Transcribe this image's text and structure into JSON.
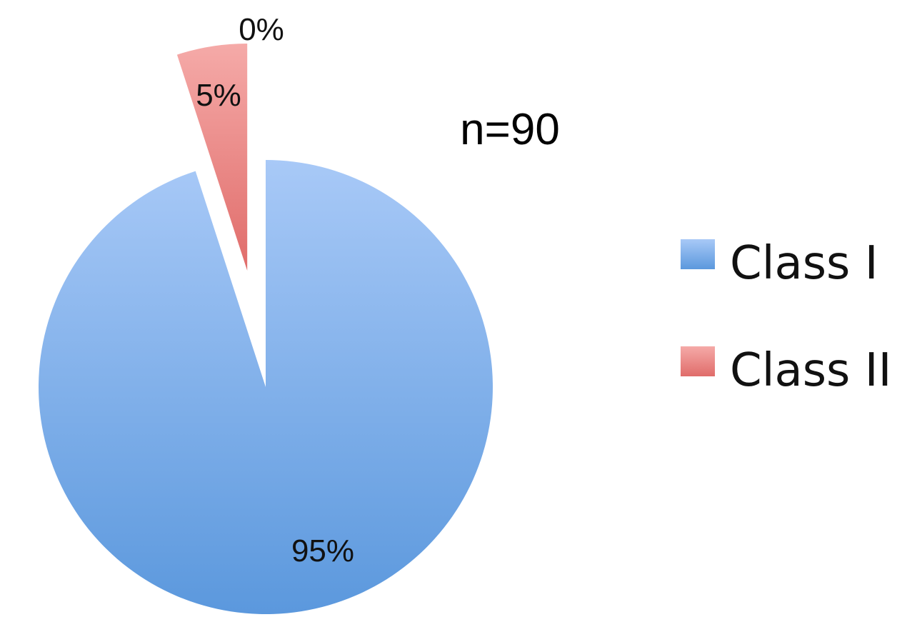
{
  "chart_data": {
    "type": "pie",
    "title": "",
    "annotation": "n=90",
    "slices": [
      {
        "name": "Class I",
        "value": 95,
        "label": "95%",
        "color": "#7fadea",
        "exploded": false
      },
      {
        "name": "Class II",
        "value": 5,
        "label": "5%",
        "color": "#ee8a88",
        "exploded": true
      },
      {
        "name": "",
        "value": 0,
        "label": "0%",
        "color": "#c9c9c9",
        "exploded": false
      }
    ],
    "legend": {
      "placement": "right",
      "entries": [
        {
          "label": "Class I",
          "color": "#7fadea"
        },
        {
          "label": "Class II",
          "color": "#ee8a88"
        }
      ]
    }
  }
}
